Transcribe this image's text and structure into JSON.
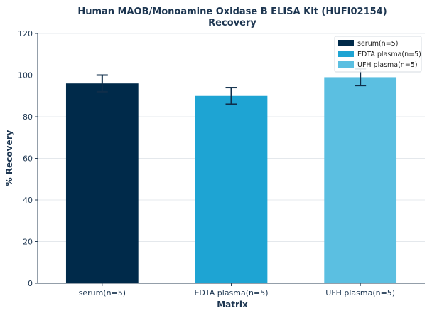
{
  "chart_data": {
    "type": "bar",
    "title_line1": "Human MAOB/Monoamine Oxidase B ELISA Kit (HUFI02154)",
    "title_line2": "Recovery",
    "xlabel": "Matrix",
    "ylabel": "% Recovery",
    "categories": [
      "serum(n=5)",
      "EDTA plasma(n=5)",
      "UFH plasma(n=5)"
    ],
    "values": [
      96,
      90,
      99
    ],
    "errors": [
      4,
      4,
      4
    ],
    "colors": [
      "#002a4a",
      "#1ea4d3",
      "#5bbfe1"
    ],
    "ylim": [
      0,
      120
    ],
    "yticks": [
      0,
      20,
      40,
      60,
      80,
      100,
      120
    ],
    "reference_line": 100,
    "grid": true,
    "legend": {
      "placement": "top-right",
      "entries": [
        "serum(n=5)",
        "EDTA plasma(n=5)",
        "UFH plasma(n=5)"
      ]
    }
  }
}
